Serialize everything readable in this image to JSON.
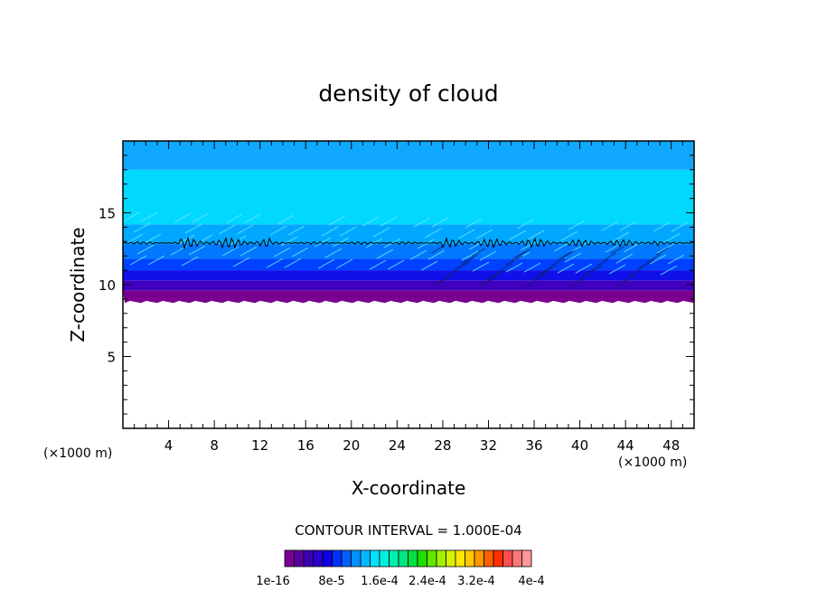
{
  "chart_data": {
    "type": "heatmap",
    "title": "density of cloud",
    "xlabel": "X-coordinate",
    "ylabel": "Z-coordinate",
    "x_unit": "(×1000 m)",
    "xlim": [
      0,
      50
    ],
    "ylim": [
      0,
      20
    ],
    "x_ticks": [
      4,
      8,
      12,
      16,
      20,
      24,
      28,
      32,
      36,
      40,
      44,
      48
    ],
    "y_ticks": [
      5,
      10,
      15
    ],
    "contour_interval_label": "CONTOUR INTERVAL = 1.000E-04",
    "colorbar": {
      "colors": [
        "#7a0090",
        "#5a00a0",
        "#3c00b4",
        "#2a00cc",
        "#1000e4",
        "#0030ff",
        "#0060ff",
        "#0090ff",
        "#00b8ff",
        "#00e0ff",
        "#00f0e0",
        "#00f0b0",
        "#00e880",
        "#00e040",
        "#20e000",
        "#60e800",
        "#a0f000",
        "#d8f000",
        "#ffe800",
        "#ffc800",
        "#ff9800",
        "#ff6000",
        "#ff3000",
        "#ff5050",
        "#ff7878",
        "#ff9898"
      ],
      "tick_labels": [
        "1e-16",
        "8e-5",
        "1.6e-4",
        "2.4e-4",
        "3.2e-4",
        "4e-4"
      ]
    },
    "cloud_bands": [
      {
        "z_bottom": 8.8,
        "z_top": 9.6,
        "color": "#7a0090"
      },
      {
        "z_bottom": 9.6,
        "z_top": 10.3,
        "color": "#4000c0"
      },
      {
        "z_bottom": 10.3,
        "z_top": 11.0,
        "color": "#1010e8"
      },
      {
        "z_bottom": 11.0,
        "z_top": 11.8,
        "color": "#0040ff"
      },
      {
        "z_bottom": 11.8,
        "z_top": 12.8,
        "color": "#0078ff"
      },
      {
        "z_bottom": 12.8,
        "z_top": 14.2,
        "color": "#00a8ff"
      },
      {
        "z_bottom": 14.2,
        "z_top": 18.0,
        "color": "#00d8ff"
      },
      {
        "z_bottom": 18.0,
        "z_top": 20.0,
        "color": "#10a8ff"
      }
    ],
    "contour_line_z": 12.9
  }
}
